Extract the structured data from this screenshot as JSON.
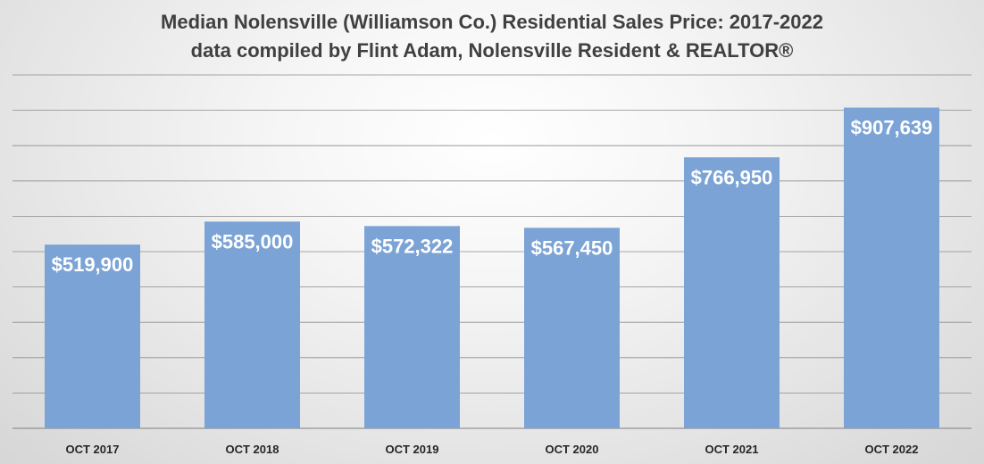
{
  "chart_data": {
    "type": "bar",
    "title": "Median Nolensville (Williamson Co.) Residential Sales Price: 2017-2022",
    "subtitle": "data compiled by Flint Adam, Nolensville Resident & REALTOR®",
    "categories": [
      "OCT 2017",
      "OCT 2018",
      "OCT 2019",
      "OCT 2020",
      "OCT 2021",
      "OCT 2022"
    ],
    "values": [
      519900,
      585000,
      572322,
      567450,
      766950,
      907639
    ],
    "data_labels": [
      "$519,900",
      "$585,000",
      "$572,322",
      "$567,450",
      "$766,950",
      "$907,639"
    ],
    "ylim": [
      0,
      1000000
    ],
    "y_gridline_step": 100000,
    "y_tick_labels_shown": false,
    "grid": true,
    "legend": "none",
    "bar_color": "#7ba3d5",
    "gridline_color": "#8c8c8c"
  }
}
